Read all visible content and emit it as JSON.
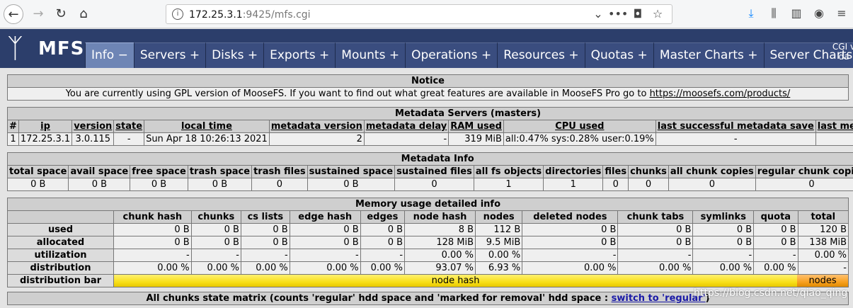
{
  "browser": {
    "url_host": "172.25.3.1",
    "url_rest": ":9425/mfs.cgi"
  },
  "header": {
    "logo_text": "MFS",
    "menu": [
      {
        "label": "Info −",
        "active": true
      },
      {
        "label": "Servers +"
      },
      {
        "label": "Disks +"
      },
      {
        "label": "Exports +"
      },
      {
        "label": "Mounts +"
      },
      {
        "label": "Operations +"
      },
      {
        "label": "Resources +"
      },
      {
        "label": "Quotas +"
      },
      {
        "label": "Master Charts +"
      },
      {
        "label": "Server Charts +"
      }
    ],
    "cgi_line1": "CGI v",
    "cgi_line2": "da"
  },
  "notice": {
    "title": "Notice",
    "text": "You are currently using GPL version of MooseFS. If you want to find out what great features are available in MooseFS Pro go to ",
    "link": "https://moosefs.com/products/"
  },
  "masters": {
    "title": "Metadata Servers (masters)",
    "headers": [
      "#",
      "ip",
      "version",
      "state",
      "local time",
      "metadata version",
      "metadata delay",
      "RAM used",
      "CPU used",
      "last successful metadata save",
      "last metadata save d"
    ],
    "row": [
      "1",
      "172.25.3.1",
      "3.0.115",
      "-",
      "Sun Apr 18 10:26:13 2021",
      "2",
      "-",
      "319 MiB",
      "all:0.47% sys:0.28% user:0.19%",
      "-",
      "-"
    ]
  },
  "metainfo": {
    "title": "Metadata Info",
    "headers": [
      "total space",
      "avail space",
      "free space",
      "trash space",
      "trash files",
      "sustained space",
      "sustained files",
      "all fs objects",
      "directories",
      "files",
      "chunks",
      "all chunk copies",
      "regular chunk copies"
    ],
    "row": [
      "0 B",
      "0 B",
      "0 B",
      "0 B",
      "0",
      "0 B",
      "0",
      "1",
      "1",
      "0",
      "0",
      "0",
      "0"
    ]
  },
  "memory": {
    "title": "Memory usage detailed info",
    "headers": [
      "chunk hash",
      "chunks",
      "cs lists",
      "edge hash",
      "edges",
      "node hash",
      "nodes",
      "deleted nodes",
      "chunk tabs",
      "symlinks",
      "quota",
      "total"
    ],
    "rows": [
      {
        "label": "used",
        "values": [
          "0 B",
          "0 B",
          "0 B",
          "0 B",
          "0 B",
          "8 B",
          "112 B",
          "0 B",
          "0 B",
          "0 B",
          "0 B",
          "120 B"
        ]
      },
      {
        "label": "allocated",
        "values": [
          "0 B",
          "0 B",
          "0 B",
          "0 B",
          "0 B",
          "128 MiB",
          "9.5 MiB",
          "0 B",
          "0 B",
          "0 B",
          "0 B",
          "138 MiB"
        ]
      },
      {
        "label": "utilization",
        "values": [
          "-",
          "-",
          "-",
          "-",
          "-",
          "0.00 %",
          "0.00 %",
          "-",
          "-",
          "-",
          "-",
          "0.00 %"
        ]
      },
      {
        "label": "distribution",
        "values": [
          "0.00 %",
          "0.00 %",
          "0.00 %",
          "0.00 %",
          "0.00 %",
          "93.07 %",
          "6.93 %",
          "0.00 %",
          "0.00 %",
          "0.00 %",
          "0.00 %",
          "-"
        ]
      }
    ],
    "bar_label": "distribution bar",
    "bar_segments": [
      {
        "label": "node hash",
        "percent": 93.07,
        "color": "#f8e01a"
      },
      {
        "label": "nodes",
        "percent": 6.93,
        "color": "#f8a020"
      }
    ]
  },
  "chunks_matrix": {
    "title": "All chunks state matrix (counts 'regular' hdd space and 'marked for removal' hdd space : ",
    "link": "switch to 'regular'",
    "suffix": ")"
  },
  "watermark": "https://blog.csdn.net/qiao_qing"
}
